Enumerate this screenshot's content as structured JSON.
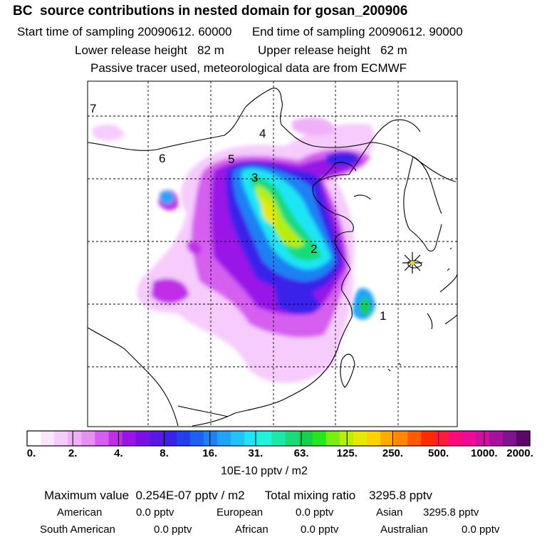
{
  "header": {
    "title": "BC  source contributions in nested domain for gosan_200906",
    "start_label": "Start time of sampling 20090612. 60000",
    "end_label": "End time of sampling 20090612. 90000",
    "lower_label": "Lower release height   82 m",
    "upper_label": "Upper release height   62 m",
    "tracer_label": "Passive tracer used, meteorological data are from ECMWF"
  },
  "map": {
    "region_labels": [
      "1",
      "2",
      "3",
      "4",
      "5",
      "6",
      "7"
    ],
    "receptor": "gosan",
    "receptor_icon": "star-icon"
  },
  "colorbar": {
    "tick_labels": [
      "0.",
      "2.",
      "4.",
      "8.",
      "16.",
      "31.",
      "63.",
      "125.",
      "250.",
      "500.",
      "1000.",
      "2000."
    ],
    "unit": "10E-10 pptv / m2",
    "colors": [
      "#ffffff",
      "#fbe7fd",
      "#f5ccfb",
      "#efb0f8",
      "#e88ff4",
      "#d65ef0",
      "#c12ee8",
      "#9a14e8",
      "#7a10e6",
      "#5b16e8",
      "#3a22ea",
      "#2240ee",
      "#1e60f2",
      "#1e82f4",
      "#22a4f6",
      "#22c4f6",
      "#1ee6f4",
      "#1ef4d6",
      "#1ce8a8",
      "#18dc78",
      "#14d04a",
      "#22e81c",
      "#7aee10",
      "#b8ee0c",
      "#e8e808",
      "#ffd200",
      "#ffaa00",
      "#ff8800",
      "#ff5a00",
      "#ff2a00",
      "#ff1a40",
      "#ff0a7a",
      "#f00a96",
      "#d010a0",
      "#a810a0",
      "#801490",
      "#5a0a66"
    ]
  },
  "summary": {
    "max_label": "Maximum value  0.254E-07 pptv / m2",
    "total_label": "Total mixing ratio    3295.8 pptv",
    "american": "American",
    "american_val": "0.0 pptv",
    "european": "European",
    "european_val": "0.0 pptv",
    "asian": "Asian",
    "asian_val": "3295.8 pptv",
    "south_american": "South American",
    "south_american_val": "0.0 pptv",
    "african": "African",
    "african_val": "0.0 pptv",
    "australian": "Australian",
    "australian_val": "0.0 pptv"
  }
}
